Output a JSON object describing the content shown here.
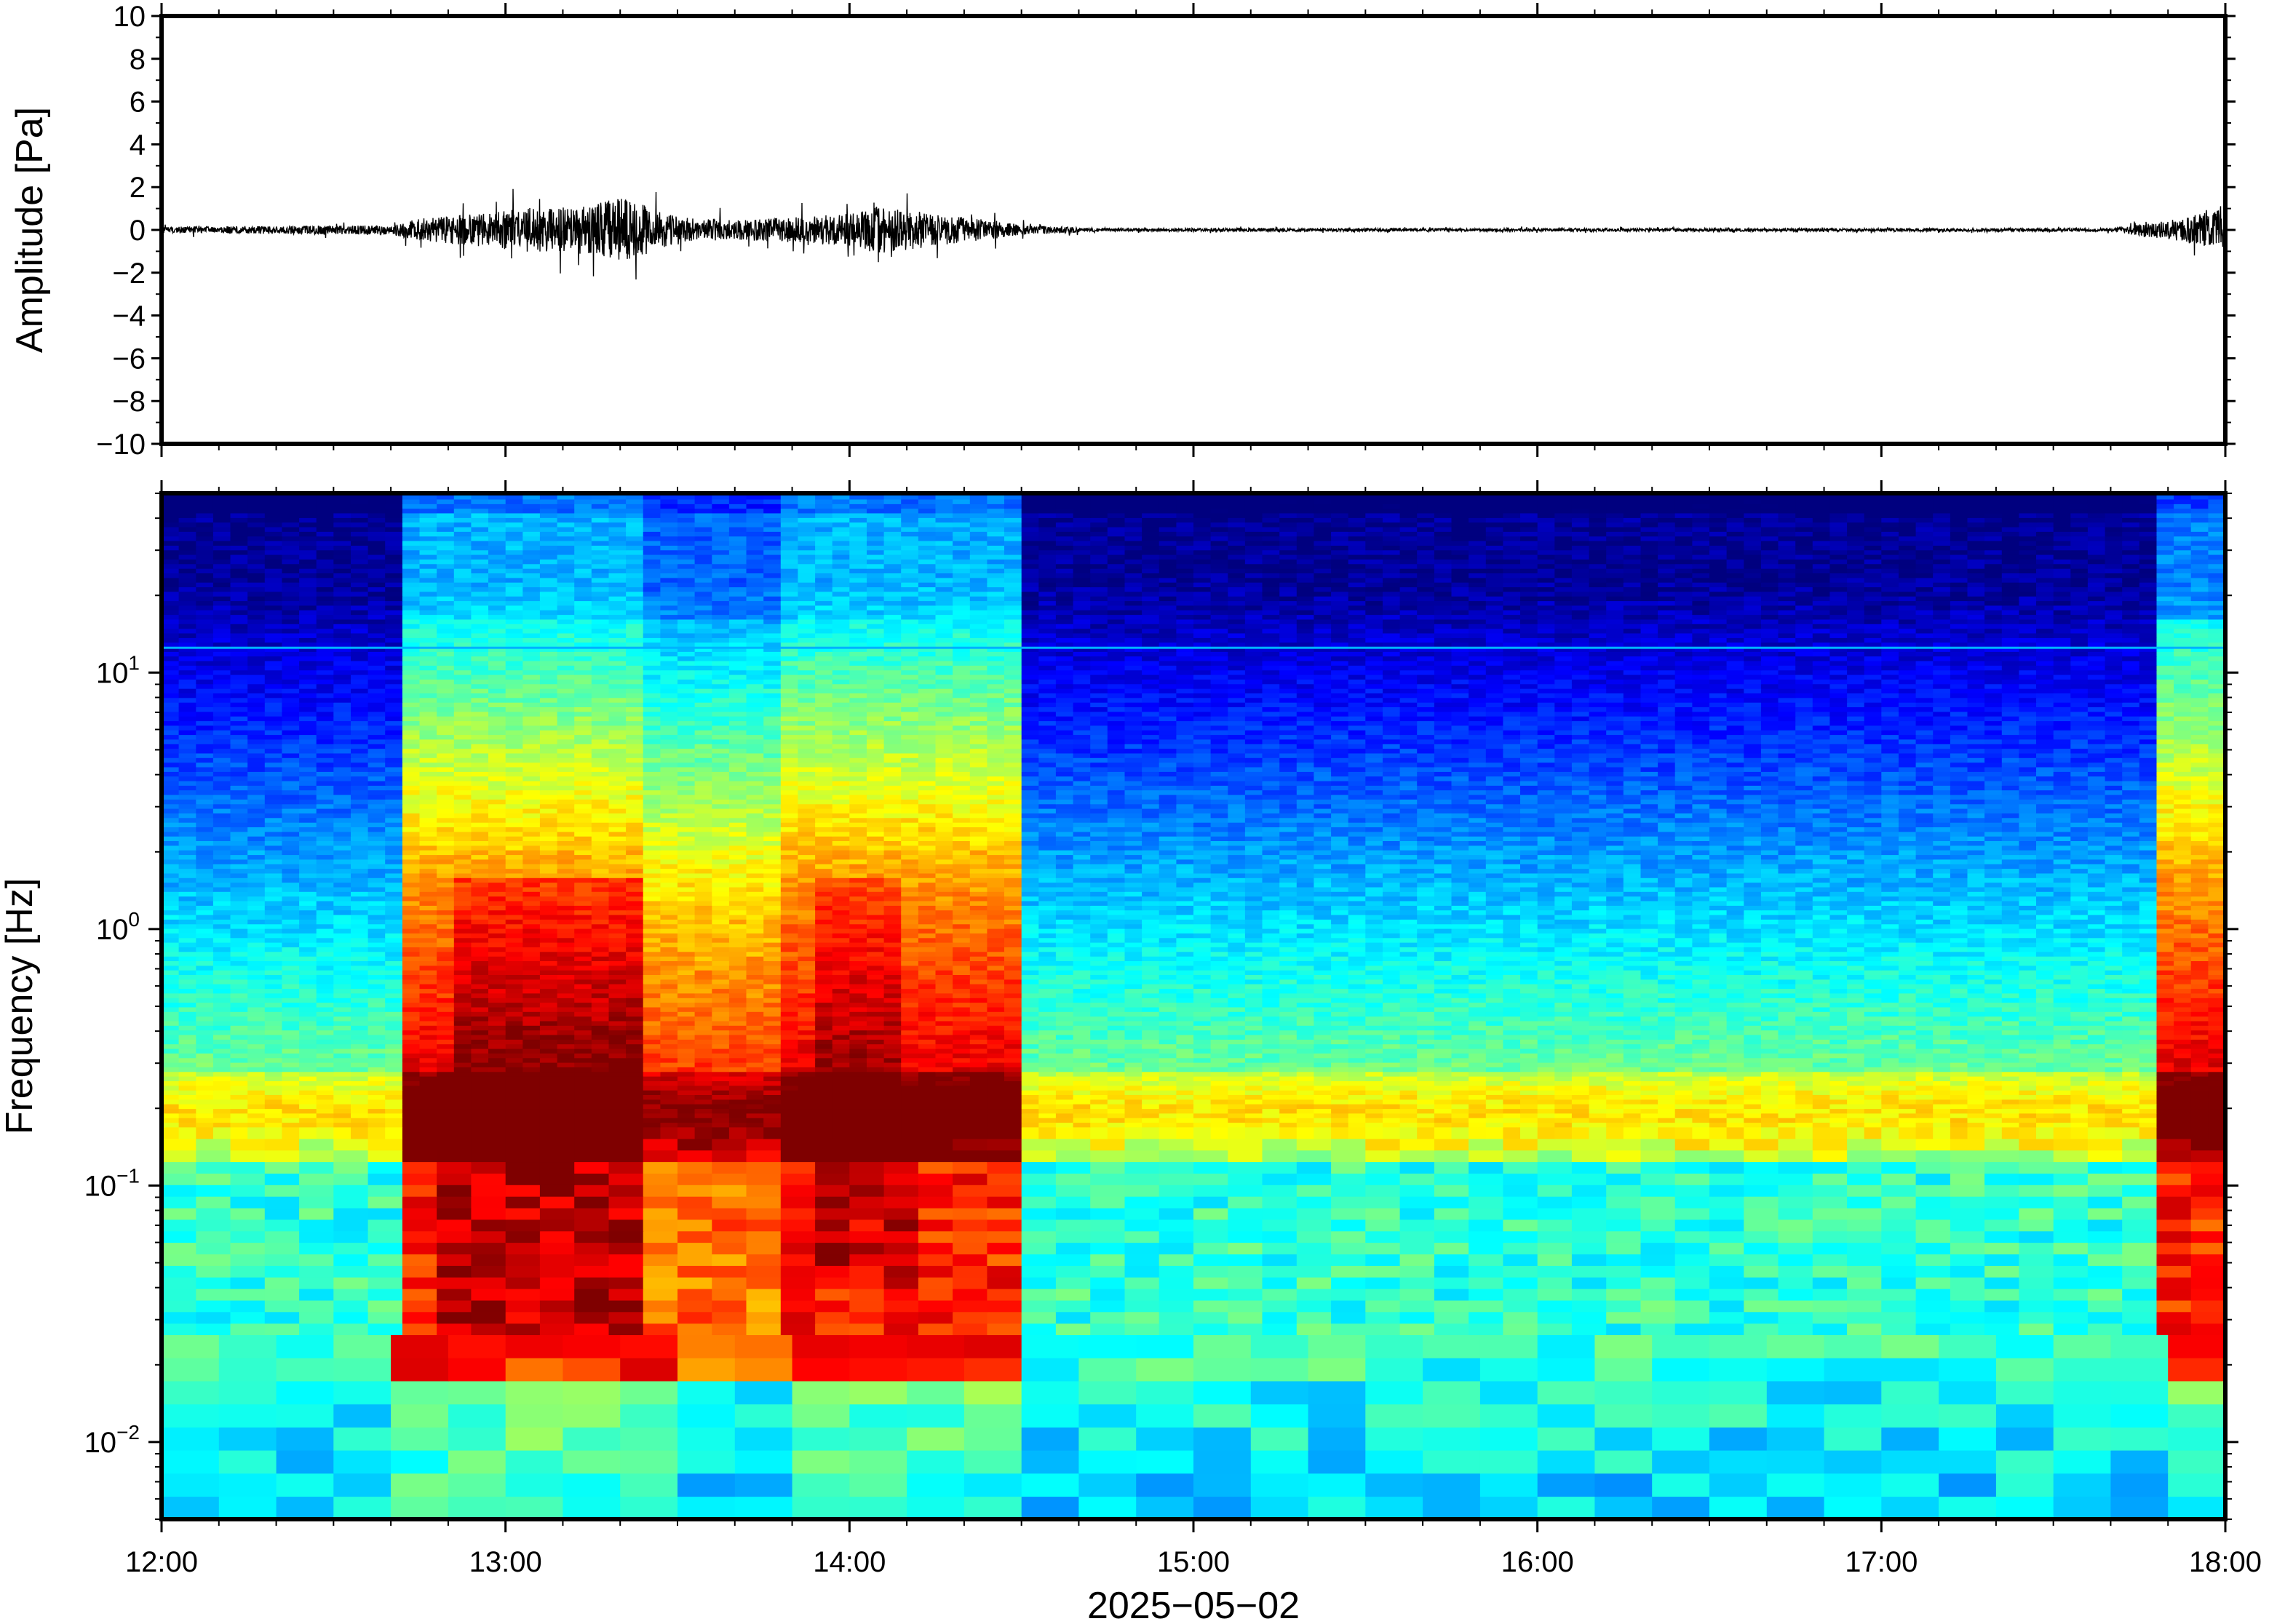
{
  "chart_data": [
    {
      "type": "line",
      "title": "",
      "ylabel": "Amplitude [Pa]",
      "ylim": [
        -10,
        10
      ],
      "yticks": [
        10,
        8,
        6,
        4,
        2,
        0,
        -2,
        -4,
        -6,
        -8,
        -10
      ],
      "ytick_labels": [
        "10",
        "8",
        "6",
        "4",
        "2",
        "0",
        "−2",
        "−4",
        "−6",
        "−8",
        "−10"
      ],
      "xlim": [
        "12:00",
        "18:00"
      ],
      "series": [
        {
          "color": "#000000",
          "envelope_points": [
            {
              "time": "12:00",
              "amplitude": 0.2
            },
            {
              "time": "12:40",
              "amplitude": 0.3
            },
            {
              "time": "12:45",
              "amplitude": 0.7
            },
            {
              "time": "12:55",
              "amplitude": 1.0
            },
            {
              "time": "13:05",
              "amplitude": 1.4
            },
            {
              "time": "13:15",
              "amplitude": 1.5
            },
            {
              "time": "13:20",
              "amplitude": 2.1
            },
            {
              "time": "13:30",
              "amplitude": 0.8
            },
            {
              "time": "13:40",
              "amplitude": 0.6
            },
            {
              "time": "13:50",
              "amplitude": 0.8
            },
            {
              "time": "14:00",
              "amplitude": 1.0
            },
            {
              "time": "14:05",
              "amplitude": 1.5
            },
            {
              "time": "14:15",
              "amplitude": 1.0
            },
            {
              "time": "14:25",
              "amplitude": 0.6
            },
            {
              "time": "14:30",
              "amplitude": 0.3
            },
            {
              "time": "14:45",
              "amplitude": 0.1
            },
            {
              "time": "17:40",
              "amplitude": 0.1
            },
            {
              "time": "17:50",
              "amplitude": 0.6
            },
            {
              "time": "18:00",
              "amplitude": 1.3
            }
          ]
        }
      ]
    },
    {
      "type": "heatmap",
      "title": "",
      "ylabel": "Frequency [Hz]",
      "yscale": "log",
      "ylim": [
        0.005,
        50
      ],
      "yticks": [
        0.01,
        0.1,
        1,
        10
      ],
      "ytick_labels": [
        {
          "base": "10",
          "exp": "−2"
        },
        {
          "base": "10",
          "exp": "−1"
        },
        {
          "base": "10",
          "exp": "0"
        },
        {
          "base": "10",
          "exp": "1"
        }
      ],
      "xlabel": "2025−05−02",
      "xlim": [
        "12:00",
        "18:00"
      ],
      "xtick_labels": [
        "12:00",
        "13:00",
        "14:00",
        "15:00",
        "16:00",
        "17:00",
        "18:00"
      ],
      "colormap": "jet",
      "colorscale": [
        "#00007f",
        "#0000ff",
        "#007fff",
        "#00ffff",
        "#7fff7f",
        "#ffff00",
        "#ff7f00",
        "#ff0000",
        "#7f0000"
      ],
      "power_levels": {
        "description_of_activity": "high power 12:42–14:30 and after 17:47; quiet background otherwise",
        "periods": [
          {
            "start": "12:00",
            "end": "12:42",
            "level": "background"
          },
          {
            "start": "12:42",
            "end": "14:30",
            "level": "high"
          },
          {
            "start": "14:30",
            "end": "17:47",
            "level": "background"
          },
          {
            "start": "17:47",
            "end": "18:00",
            "level": "high"
          }
        ]
      },
      "spectral_line_hz": 12.5
    }
  ]
}
